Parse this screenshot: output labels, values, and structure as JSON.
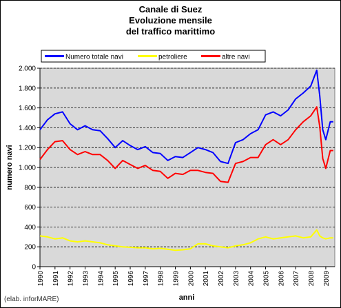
{
  "chart_data": {
    "type": "line",
    "title_lines": [
      "Canale di Suez",
      "Evoluzione mensile",
      "del traffico marittimo"
    ],
    "xlabel": "anni",
    "ylabel": "numero navi",
    "xlim": [
      1990,
      2009.6
    ],
    "ylim": [
      0,
      2000
    ],
    "y_ticks": [
      0,
      200,
      400,
      600,
      800,
      1000,
      1200,
      1400,
      1600,
      1800,
      2000
    ],
    "y_tick_labels": [
      "0",
      "200",
      "400",
      "600",
      "800",
      "1.000",
      "1.200",
      "1.400",
      "1.600",
      "1.800",
      "2.000"
    ],
    "x_ticks": [
      1990,
      1991,
      1992,
      1993,
      1994,
      1995,
      1996,
      1997,
      1998,
      1999,
      2000,
      2001,
      2002,
      2003,
      2004,
      2005,
      2006,
      2007,
      2008,
      2009
    ],
    "x_tick_labels": [
      "1990",
      "1991",
      "1992",
      "1993",
      "1994",
      "1995",
      "1996",
      "1997",
      "1998",
      "1999",
      "2000",
      "2001",
      "2002",
      "2003",
      "2004",
      "2005",
      "2006",
      "2007",
      "2008",
      "2009"
    ],
    "grid": "horizontal dashed",
    "legend_placement": "top",
    "plot_background": "#d9d9d9",
    "series": [
      {
        "name": "Numero totale navi",
        "color": "#0000ff",
        "x": [
          1990,
          1990.5,
          1991,
          1991.5,
          1992,
          1992.5,
          1993,
          1993.5,
          1994,
          1994.5,
          1995,
          1995.5,
          1996,
          1996.5,
          1997,
          1997.5,
          1998,
          1998.5,
          1999,
          1999.5,
          2000,
          2000.5,
          2001,
          2001.5,
          2002,
          2002.5,
          2003,
          2003.5,
          2004,
          2004.5,
          2005,
          2005.5,
          2006,
          2006.5,
          2007,
          2007.5,
          2008,
          2008.4,
          2008.6,
          2008.8,
          2009,
          2009.3,
          2009.5
        ],
        "y": [
          1380,
          1480,
          1540,
          1560,
          1440,
          1380,
          1420,
          1380,
          1370,
          1290,
          1200,
          1270,
          1220,
          1180,
          1210,
          1150,
          1140,
          1070,
          1110,
          1100,
          1150,
          1200,
          1180,
          1150,
          1060,
          1040,
          1250,
          1280,
          1340,
          1380,
          1530,
          1560,
          1520,
          1580,
          1690,
          1750,
          1820,
          1980,
          1720,
          1380,
          1280,
          1460,
          1460
        ]
      },
      {
        "name": "petroliere",
        "color": "#ffff00",
        "x": [
          1990,
          1990.5,
          1991,
          1991.5,
          1992,
          1992.5,
          1993,
          1993.5,
          1994,
          1994.5,
          1995,
          1995.5,
          1996,
          1996.5,
          1997,
          1997.5,
          1998,
          1998.5,
          1999,
          1999.5,
          2000,
          2000.5,
          2001,
          2001.5,
          2002,
          2002.5,
          2003,
          2003.5,
          2004,
          2004.5,
          2005,
          2005.5,
          2006,
          2006.5,
          2007,
          2007.5,
          2008,
          2008.4,
          2008.6,
          2008.8,
          2009,
          2009.3,
          2009.5
        ],
        "y": [
          310,
          300,
          280,
          290,
          260,
          250,
          260,
          250,
          240,
          220,
          210,
          200,
          195,
          190,
          190,
          180,
          185,
          175,
          165,
          170,
          180,
          230,
          230,
          210,
          200,
          190,
          210,
          220,
          240,
          280,
          300,
          280,
          290,
          300,
          310,
          290,
          300,
          370,
          310,
          290,
          280,
          290,
          290
        ]
      },
      {
        "name": "altre navi",
        "color": "#ff0000",
        "x": [
          1990,
          1990.5,
          1991,
          1991.5,
          1992,
          1992.5,
          1993,
          1993.5,
          1994,
          1994.5,
          1995,
          1995.5,
          1996,
          1996.5,
          1997,
          1997.5,
          1998,
          1998.5,
          1999,
          1999.5,
          2000,
          2000.5,
          2001,
          2001.5,
          2002,
          2002.5,
          2003,
          2003.5,
          2004,
          2004.5,
          2005,
          2005.5,
          2006,
          2006.5,
          2007,
          2007.5,
          2008,
          2008.4,
          2008.6,
          2008.8,
          2009,
          2009.3,
          2009.5
        ],
        "y": [
          1080,
          1180,
          1260,
          1270,
          1180,
          1130,
          1160,
          1130,
          1130,
          1070,
          990,
          1070,
          1030,
          990,
          1020,
          970,
          960,
          890,
          940,
          930,
          970,
          970,
          950,
          940,
          860,
          850,
          1040,
          1060,
          1100,
          1100,
          1230,
          1280,
          1230,
          1280,
          1380,
          1460,
          1520,
          1610,
          1410,
          1090,
          990,
          1170,
          1170
        ]
      }
    ]
  },
  "credit": "(elab. inforMARE)"
}
